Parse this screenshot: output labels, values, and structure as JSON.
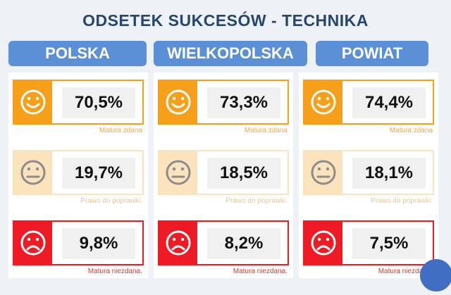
{
  "title": "ODSETEK SUKCESÓW - TECHNIKA",
  "columns": [
    {
      "header": "POLSKA",
      "rows": [
        {
          "value": "70,5%",
          "caption": "Matura zdana",
          "icon": "happy-face-icon",
          "color": "#f59f1a"
        },
        {
          "value": "19,7%",
          "caption": "Prawo do poprawki.",
          "icon": "neutral-face-icon",
          "color": "#fbe3bd"
        },
        {
          "value": "9,8%",
          "caption": "Matura niezdana.",
          "icon": "sad-face-icon",
          "color": "#ee1b24"
        }
      ]
    },
    {
      "header": "WIELKOPOLSKA",
      "rows": [
        {
          "value": "73,3%",
          "caption": "Matura zdana",
          "icon": "happy-face-icon",
          "color": "#f59f1a"
        },
        {
          "value": "18,5%",
          "caption": "Prawo do poprawki.",
          "icon": "neutral-face-icon",
          "color": "#fbe3bd"
        },
        {
          "value": "8,2%",
          "caption": "Matura niezdana.",
          "icon": "sad-face-icon",
          "color": "#ee1b24"
        }
      ]
    },
    {
      "header": "POWIAT",
      "rows": [
        {
          "value": "74,4%",
          "caption": "Matura zdana",
          "icon": "happy-face-icon",
          "color": "#f59f1a"
        },
        {
          "value": "18,1%",
          "caption": "Prawo do poprawki.",
          "icon": "neutral-face-icon",
          "color": "#fbe3bd"
        },
        {
          "value": "7,5%",
          "caption": "Matura niezdana.",
          "icon": "sad-face-icon",
          "color": "#ee1b24"
        }
      ]
    }
  ],
  "colors": {
    "title": "#25476f",
    "header_bg": "#5b90d6",
    "background": "#eef1f6"
  }
}
